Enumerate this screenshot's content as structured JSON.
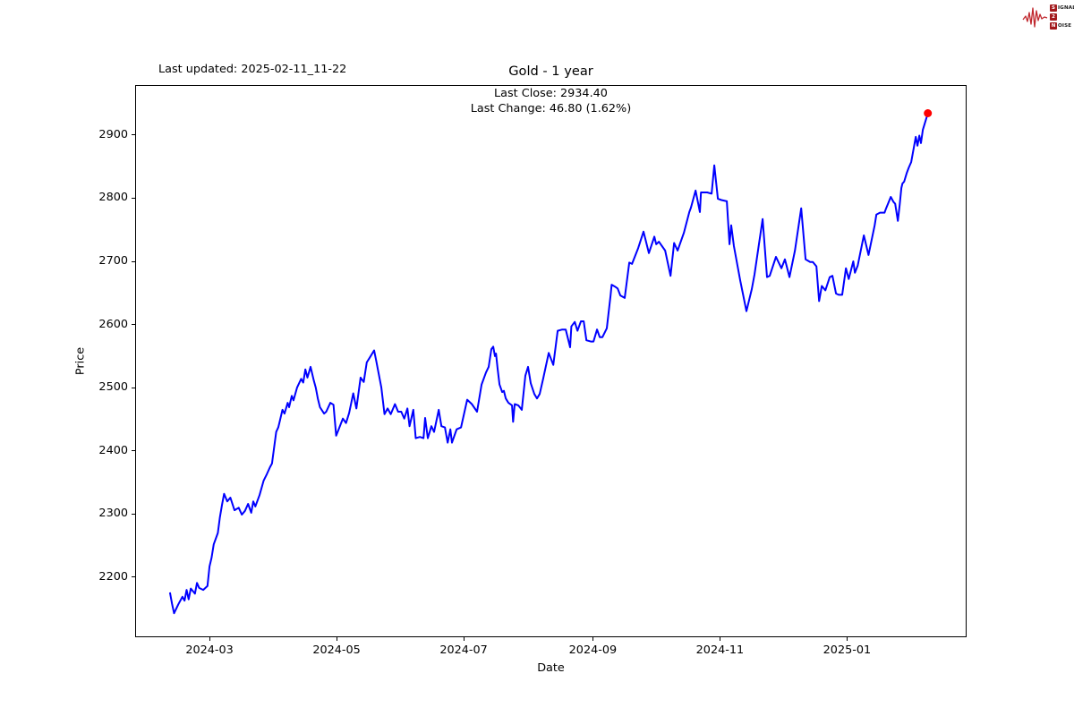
{
  "header": {
    "last_updated": "Last updated: 2025-02-11_11-22",
    "title": "Gold - 1 year"
  },
  "annotations": {
    "last_close": "Last Close: 2934.40",
    "last_change": "Last Change: 46.80 (1.62%)"
  },
  "axes": {
    "x_label": "Date",
    "y_label": "Price"
  },
  "logo": {
    "line1_initial": "S",
    "line1_rest": "IGNAL",
    "line2_initial": "2",
    "line2_rest": "",
    "line3_initial": "N",
    "line3_rest": "OISE",
    "waveform_color": "#c0272d",
    "box_color": "#a31a1d"
  },
  "chart_data": {
    "type": "line",
    "title": "Gold - 1 year",
    "xlabel": "Date",
    "ylabel": "Price",
    "last_close": 2934.4,
    "last_change": 46.8,
    "last_change_pct": "1.62%",
    "line_color": "#0000ff",
    "marker_color": "#ff0000",
    "grid": false,
    "legend": "none",
    "x_unit": "days_since_2024-01-01",
    "xlim": [
      24.3,
      423.4
    ],
    "ylim": [
      2105,
      2979
    ],
    "x_ticks": [
      {
        "day": 60,
        "label": "2024-03"
      },
      {
        "day": 121,
        "label": "2024-05"
      },
      {
        "day": 182,
        "label": "2024-07"
      },
      {
        "day": 244,
        "label": "2024-09"
      },
      {
        "day": 305,
        "label": "2024-11"
      },
      {
        "day": 366,
        "label": "2025-01"
      }
    ],
    "y_ticks": [
      2200,
      2300,
      2400,
      2500,
      2600,
      2700,
      2800,
      2900
    ],
    "series": [
      {
        "name": "Gold price",
        "points": [
          [
            41,
            2176
          ],
          [
            42,
            2158
          ],
          [
            43,
            2143
          ],
          [
            45,
            2157
          ],
          [
            47,
            2169
          ],
          [
            48,
            2163
          ],
          [
            49,
            2180
          ],
          [
            50,
            2165
          ],
          [
            51,
            2182
          ],
          [
            53,
            2174
          ],
          [
            54,
            2191
          ],
          [
            55,
            2183
          ],
          [
            57,
            2180
          ],
          [
            59,
            2186
          ],
          [
            60,
            2217
          ],
          [
            61,
            2231
          ],
          [
            62,
            2252
          ],
          [
            64,
            2270
          ],
          [
            65,
            2295
          ],
          [
            66,
            2315
          ],
          [
            67,
            2332
          ],
          [
            68.5,
            2320
          ],
          [
            70,
            2326
          ],
          [
            72,
            2306
          ],
          [
            74,
            2310
          ],
          [
            75.5,
            2299
          ],
          [
            77,
            2305
          ],
          [
            78.5,
            2316
          ],
          [
            80,
            2302
          ],
          [
            81,
            2320
          ],
          [
            82,
            2312
          ],
          [
            84,
            2330
          ],
          [
            86,
            2353
          ],
          [
            87.5,
            2363
          ],
          [
            89,
            2374
          ],
          [
            90,
            2380
          ],
          [
            92,
            2430
          ],
          [
            93,
            2437
          ],
          [
            93.5,
            2444
          ],
          [
            95,
            2465
          ],
          [
            96,
            2459
          ],
          [
            97.5,
            2476
          ],
          [
            98.2,
            2469
          ],
          [
            99.5,
            2487
          ],
          [
            100.3,
            2480
          ],
          [
            102,
            2500
          ],
          [
            104,
            2514
          ],
          [
            105,
            2508
          ],
          [
            106,
            2529
          ],
          [
            107,
            2516
          ],
          [
            108.5,
            2533
          ],
          [
            110,
            2512
          ],
          [
            111,
            2500
          ],
          [
            112,
            2483
          ],
          [
            113,
            2469
          ],
          [
            115,
            2459
          ],
          [
            116,
            2462
          ],
          [
            118,
            2476
          ],
          [
            119.5,
            2473
          ],
          [
            120.8,
            2424
          ],
          [
            122,
            2434
          ],
          [
            124,
            2451
          ],
          [
            125.5,
            2444
          ],
          [
            127,
            2460
          ],
          [
            129,
            2491
          ],
          [
            130.5,
            2467
          ],
          [
            132.5,
            2516
          ],
          [
            134,
            2509
          ],
          [
            135.5,
            2540
          ],
          [
            137,
            2548
          ],
          [
            139,
            2559
          ],
          [
            140,
            2543
          ],
          [
            141,
            2526
          ],
          [
            142.5,
            2500
          ],
          [
            144,
            2458
          ],
          [
            145.5,
            2467
          ],
          [
            147,
            2458
          ],
          [
            149,
            2474
          ],
          [
            150.5,
            2462
          ],
          [
            152,
            2462
          ],
          [
            153.5,
            2451
          ],
          [
            155,
            2467
          ],
          [
            156,
            2439
          ],
          [
            157.8,
            2465
          ],
          [
            159,
            2420
          ],
          [
            161,
            2422
          ],
          [
            162.7,
            2420
          ],
          [
            163.5,
            2452
          ],
          [
            164.8,
            2420
          ],
          [
            166.5,
            2439
          ],
          [
            167.8,
            2430
          ],
          [
            170,
            2465
          ],
          [
            171.3,
            2439
          ],
          [
            173,
            2437
          ],
          [
            174.3,
            2413
          ],
          [
            175.6,
            2434
          ],
          [
            176.4,
            2413
          ],
          [
            178.6,
            2434
          ],
          [
            180.7,
            2437
          ],
          [
            183.7,
            2481
          ],
          [
            185.9,
            2474
          ],
          [
            188.4,
            2462
          ],
          [
            190.6,
            2505
          ],
          [
            192.7,
            2524
          ],
          [
            194,
            2533
          ],
          [
            195.3,
            2561
          ],
          [
            196.2,
            2565
          ],
          [
            197,
            2550
          ],
          [
            197.5,
            2554
          ],
          [
            198.3,
            2530
          ],
          [
            199.2,
            2505
          ],
          [
            200.5,
            2493
          ],
          [
            201.3,
            2495
          ],
          [
            202.2,
            2483
          ],
          [
            203.5,
            2476
          ],
          [
            205.2,
            2472
          ],
          [
            205.7,
            2446
          ],
          [
            206.5,
            2474
          ],
          [
            208.2,
            2472
          ],
          [
            209.9,
            2465
          ],
          [
            211.6,
            2519
          ],
          [
            212.9,
            2533
          ],
          [
            214.2,
            2507
          ],
          [
            215.9,
            2490
          ],
          [
            217.2,
            2483
          ],
          [
            218.5,
            2490
          ],
          [
            220.2,
            2515
          ],
          [
            222.8,
            2555
          ],
          [
            225,
            2536
          ],
          [
            227.1,
            2590
          ],
          [
            229.3,
            2592
          ],
          [
            231,
            2592
          ],
          [
            233.1,
            2564
          ],
          [
            233.7,
            2597
          ],
          [
            235.3,
            2604
          ],
          [
            236.6,
            2590
          ],
          [
            238.3,
            2605
          ],
          [
            239.6,
            2605
          ],
          [
            240.9,
            2575
          ],
          [
            243,
            2573
          ],
          [
            244.3,
            2573
          ],
          [
            246,
            2592
          ],
          [
            247.3,
            2580
          ],
          [
            248.6,
            2580
          ],
          [
            250.7,
            2594
          ],
          [
            252.5,
            2646
          ],
          [
            253,
            2663
          ],
          [
            254.6,
            2660
          ],
          [
            255.9,
            2657
          ],
          [
            257.2,
            2646
          ],
          [
            259.3,
            2642
          ],
          [
            261.5,
            2698
          ],
          [
            262.8,
            2696
          ],
          [
            265.8,
            2721
          ],
          [
            268.3,
            2747
          ],
          [
            270.9,
            2713
          ],
          [
            273.5,
            2739
          ],
          [
            274.4,
            2727
          ],
          [
            275.7,
            2731
          ],
          [
            278.7,
            2717
          ],
          [
            281.3,
            2677
          ],
          [
            283,
            2729
          ],
          [
            284.7,
            2717
          ],
          [
            287.7,
            2745
          ],
          [
            290.3,
            2778
          ],
          [
            291.1,
            2785
          ],
          [
            293.3,
            2812
          ],
          [
            295.4,
            2778
          ],
          [
            295.9,
            2809
          ],
          [
            298.9,
            2809
          ],
          [
            301,
            2807
          ],
          [
            302.3,
            2852
          ],
          [
            304,
            2799
          ],
          [
            305.7,
            2797
          ],
          [
            308.3,
            2795
          ],
          [
            309.6,
            2727
          ],
          [
            310.4,
            2757
          ],
          [
            311.7,
            2724
          ],
          [
            314.7,
            2670
          ],
          [
            317.7,
            2621
          ],
          [
            320.3,
            2656
          ],
          [
            321.6,
            2679
          ],
          [
            325.5,
            2767
          ],
          [
            327.6,
            2675
          ],
          [
            328.9,
            2677
          ],
          [
            331.9,
            2707
          ],
          [
            334.5,
            2689
          ],
          [
            336.2,
            2703
          ],
          [
            338.4,
            2675
          ],
          [
            341,
            2717
          ],
          [
            344,
            2784
          ],
          [
            346.1,
            2703
          ],
          [
            348.3,
            2699
          ],
          [
            349.6,
            2699
          ],
          [
            351.3,
            2692
          ],
          [
            352.6,
            2637
          ],
          [
            353.9,
            2661
          ],
          [
            355.6,
            2654
          ],
          [
            357.7,
            2675
          ],
          [
            359,
            2677
          ],
          [
            360.7,
            2649
          ],
          [
            362,
            2647
          ],
          [
            363.7,
            2647
          ],
          [
            365.5,
            2689
          ],
          [
            366.8,
            2672
          ],
          [
            369,
            2700
          ],
          [
            369.8,
            2682
          ],
          [
            371.1,
            2693
          ],
          [
            374.1,
            2741
          ],
          [
            376.3,
            2710
          ],
          [
            379.3,
            2757
          ],
          [
            380.1,
            2774
          ],
          [
            381.8,
            2777
          ],
          [
            384,
            2777
          ],
          [
            384.8,
            2784
          ],
          [
            387,
            2802
          ],
          [
            388.3,
            2794
          ],
          [
            389.1,
            2791
          ],
          [
            390.4,
            2764
          ],
          [
            391.3,
            2790
          ],
          [
            392.1,
            2816
          ],
          [
            392.6,
            2823
          ],
          [
            393.4,
            2826
          ],
          [
            394.7,
            2840
          ],
          [
            395.6,
            2848
          ],
          [
            396.8,
            2857
          ],
          [
            399,
            2897
          ],
          [
            399.8,
            2883
          ],
          [
            400.7,
            2899
          ],
          [
            401.5,
            2887
          ],
          [
            402.4,
            2908
          ],
          [
            403.7,
            2922
          ],
          [
            404.8,
            2934.4
          ]
        ]
      }
    ]
  }
}
